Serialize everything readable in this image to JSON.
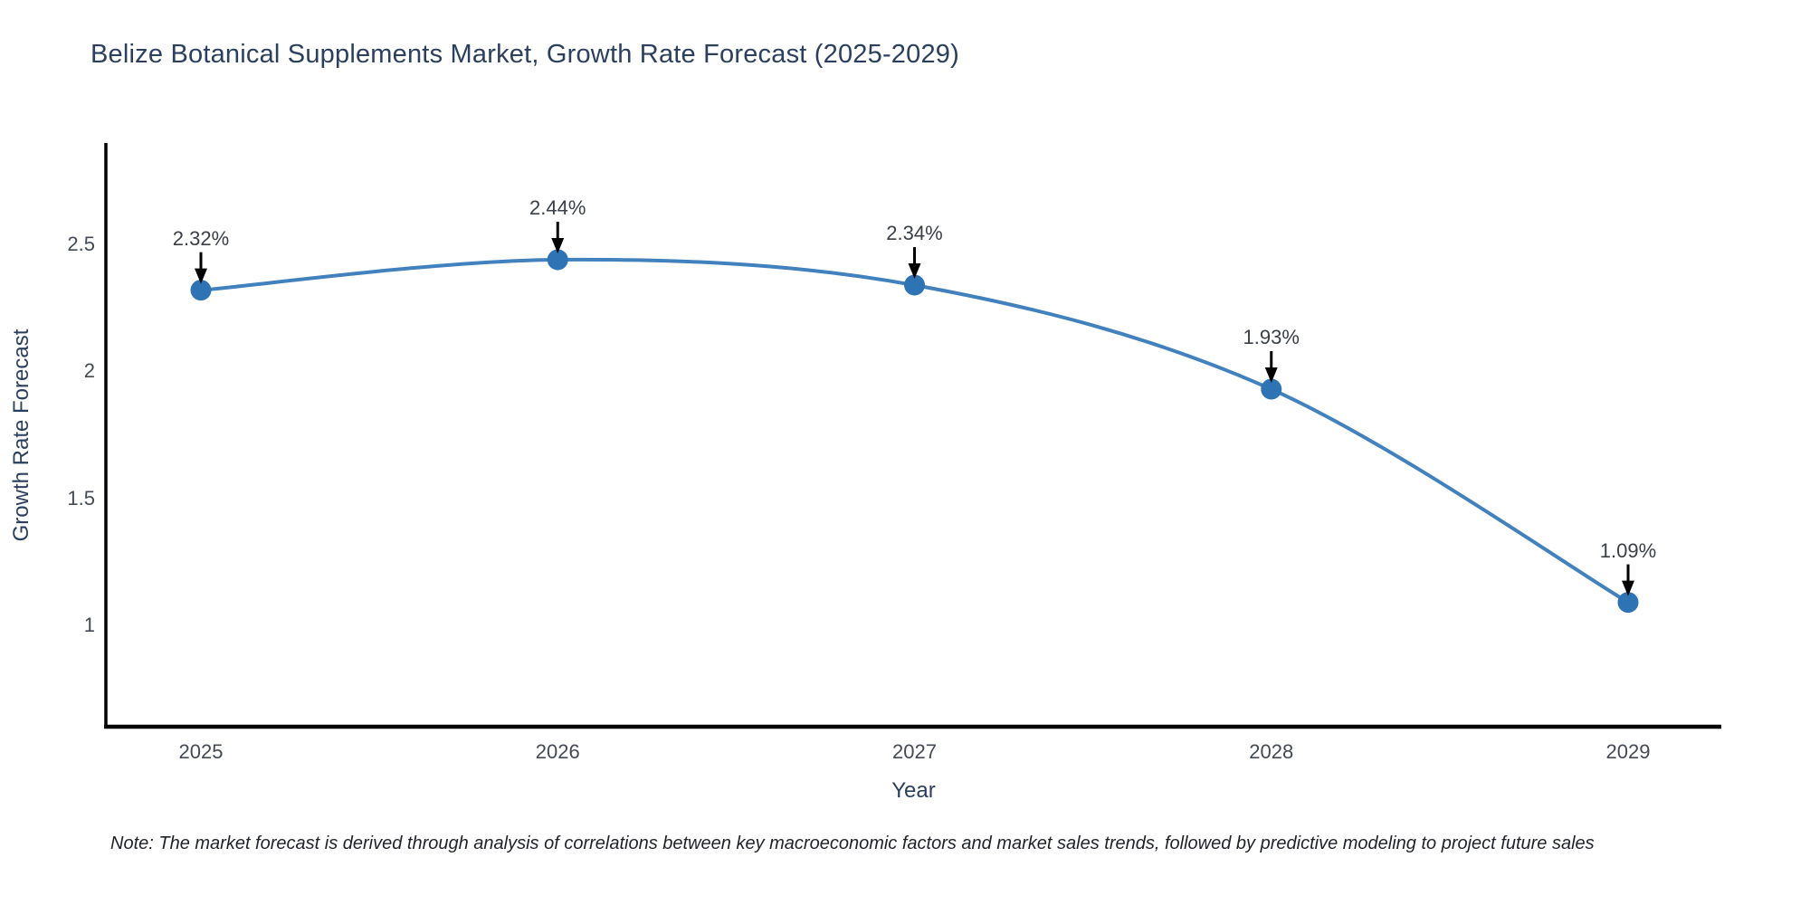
{
  "chart_data": {
    "type": "line",
    "title": "Belize Botanical Supplements Market, Growth Rate Forecast (2025-2029)",
    "xlabel": "Year",
    "ylabel": "Growth Rate Forecast",
    "categories": [
      "2025",
      "2026",
      "2027",
      "2028",
      "2029"
    ],
    "values": [
      2.32,
      2.44,
      2.34,
      1.93,
      1.09
    ],
    "point_labels": [
      "2.32%",
      "2.44%",
      "2.34%",
      "1.93%",
      "1.09%"
    ],
    "y_ticks": [
      1,
      1.5,
      2,
      2.5
    ],
    "y_tick_labels": [
      "1",
      "1.5",
      "2",
      "2.5"
    ],
    "ylim": [
      0.6,
      2.9
    ],
    "grid": false,
    "legend": "none",
    "line_shape": "spline",
    "line_color": "#4181be",
    "marker_color": "#2e74b5",
    "arrow_color": "#000000",
    "axis_color": "#000000",
    "title_color": "#2b3f5e",
    "tick_color": "#444a55",
    "annotation_color": "#3a3f47"
  },
  "footnote": {
    "text": "Note: The market forecast is derived through analysis of correlations between key macroeconomic factors and market sales trends, followed by predictive modeling to project future sales"
  }
}
